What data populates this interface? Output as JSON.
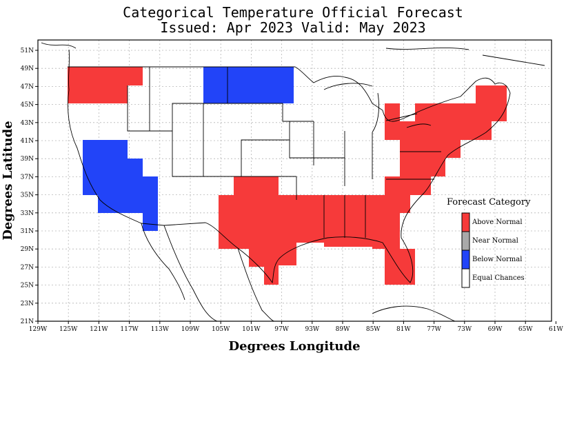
{
  "title_line1": "Categorical Temperature Official Forecast",
  "title_line2": "Issued: Apr 2023 Valid: May 2023",
  "xlabel": "Degrees Longitude",
  "ylabel": "Degrees Latitude",
  "lon_ticks": [
    "129W",
    "125W",
    "121W",
    "117W",
    "113W",
    "109W",
    "105W",
    "101W",
    "97W",
    "93W",
    "89W",
    "85W",
    "81W",
    "77W",
    "73W",
    "69W",
    "65W",
    "61W"
  ],
  "lat_ticks": [
    "21N",
    "23N",
    "25N",
    "27N",
    "29N",
    "31N",
    "33N",
    "35N",
    "37N",
    "39N",
    "41N",
    "43N",
    "45N",
    "47N",
    "49N",
    "51N"
  ],
  "legend": {
    "title": "Forecast Category",
    "items": [
      {
        "label": "Above Normal",
        "color": "#f63a3a"
      },
      {
        "label": "Near Normal",
        "color": "#a9a9a9"
      },
      {
        "label": "Below Normal",
        "color": "#2244f8"
      },
      {
        "label": "Equal Chances",
        "color": "#ffffff"
      }
    ]
  },
  "colors": {
    "above": "#f63a3a",
    "below": "#2244f8"
  }
}
